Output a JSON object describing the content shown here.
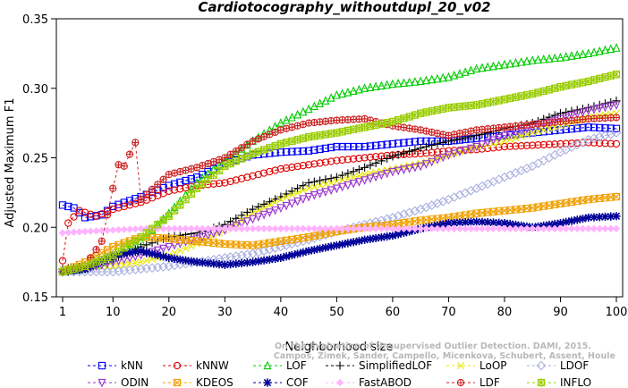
{
  "chart_data": {
    "type": "line",
    "title": "Cardiotocography_withoutdupl_20_v02",
    "xlabel": "Neighborhood size",
    "ylabel": "Adjusted Maximum F1",
    "xlim": [
      1,
      100
    ],
    "ylim": [
      0.15,
      0.35
    ],
    "xticks": [
      1,
      10,
      20,
      30,
      40,
      50,
      60,
      70,
      80,
      90,
      100
    ],
    "yticks": [
      0.15,
      0.2,
      0.25,
      0.3,
      0.35
    ],
    "grid": false,
    "legend_position": "bottom",
    "watermark": [
      "Campos, Zimek, Sander, Campello, Micenkova, Schubert, Assent, Houle",
      "On the Evaluation of Unsupervised Outlier Detection. DAMI, 2015."
    ],
    "series": [
      {
        "name": "kNN",
        "color": "#0000ff",
        "marker": "square",
        "dash": "3,3",
        "points": [
          [
            1,
            0.216
          ],
          [
            3,
            0.214
          ],
          [
            5,
            0.207
          ],
          [
            8,
            0.209
          ],
          [
            10,
            0.215
          ],
          [
            15,
            0.222
          ],
          [
            20,
            0.23
          ],
          [
            25,
            0.236
          ],
          [
            30,
            0.246
          ],
          [
            35,
            0.252
          ],
          [
            40,
            0.254
          ],
          [
            45,
            0.255
          ],
          [
            50,
            0.258
          ],
          [
            55,
            0.258
          ],
          [
            60,
            0.26
          ],
          [
            65,
            0.262
          ],
          [
            70,
            0.262
          ],
          [
            75,
            0.264
          ],
          [
            80,
            0.266
          ],
          [
            85,
            0.268
          ],
          [
            90,
            0.27
          ],
          [
            95,
            0.272
          ],
          [
            100,
            0.271
          ]
        ]
      },
      {
        "name": "kNNW",
        "color": "#e00000",
        "marker": "circle",
        "dash": "3,3",
        "points": [
          [
            1,
            0.176
          ],
          [
            2,
            0.203
          ],
          [
            4,
            0.212
          ],
          [
            7,
            0.208
          ],
          [
            10,
            0.213
          ],
          [
            15,
            0.218
          ],
          [
            20,
            0.226
          ],
          [
            25,
            0.23
          ],
          [
            30,
            0.232
          ],
          [
            35,
            0.237
          ],
          [
            40,
            0.242
          ],
          [
            45,
            0.245
          ],
          [
            50,
            0.248
          ],
          [
            55,
            0.25
          ],
          [
            60,
            0.252
          ],
          [
            65,
            0.253
          ],
          [
            70,
            0.255
          ],
          [
            75,
            0.256
          ],
          [
            80,
            0.258
          ],
          [
            85,
            0.259
          ],
          [
            90,
            0.26
          ],
          [
            95,
            0.261
          ],
          [
            100,
            0.26
          ]
        ]
      },
      {
        "name": "LOF",
        "color": "#00cc00",
        "marker": "triangle-up",
        "dash": "3,3",
        "points": [
          [
            1,
            0.168
          ],
          [
            5,
            0.17
          ],
          [
            10,
            0.178
          ],
          [
            15,
            0.19
          ],
          [
            20,
            0.21
          ],
          [
            25,
            0.232
          ],
          [
            30,
            0.248
          ],
          [
            35,
            0.262
          ],
          [
            40,
            0.275
          ],
          [
            45,
            0.285
          ],
          [
            50,
            0.295
          ],
          [
            55,
            0.3
          ],
          [
            60,
            0.303
          ],
          [
            65,
            0.305
          ],
          [
            70,
            0.308
          ],
          [
            75,
            0.314
          ],
          [
            80,
            0.317
          ],
          [
            85,
            0.32
          ],
          [
            90,
            0.322
          ],
          [
            95,
            0.325
          ],
          [
            100,
            0.329
          ]
        ]
      },
      {
        "name": "SimplifiedLOF",
        "color": "#000000",
        "marker": "plus",
        "dash": "3,3",
        "points": [
          [
            1,
            0.17
          ],
          [
            5,
            0.172
          ],
          [
            10,
            0.177
          ],
          [
            15,
            0.186
          ],
          [
            20,
            0.193
          ],
          [
            25,
            0.196
          ],
          [
            30,
            0.202
          ],
          [
            35,
            0.213
          ],
          [
            40,
            0.222
          ],
          [
            45,
            0.232
          ],
          [
            50,
            0.236
          ],
          [
            55,
            0.243
          ],
          [
            60,
            0.251
          ],
          [
            65,
            0.257
          ],
          [
            70,
            0.262
          ],
          [
            75,
            0.266
          ],
          [
            80,
            0.271
          ],
          [
            85,
            0.275
          ],
          [
            90,
            0.282
          ],
          [
            95,
            0.286
          ],
          [
            100,
            0.291
          ]
        ]
      },
      {
        "name": "LoOP",
        "color": "#e6e600",
        "marker": "cross",
        "dash": "3,3",
        "points": [
          [
            1,
            0.17
          ],
          [
            5,
            0.171
          ],
          [
            10,
            0.172
          ],
          [
            15,
            0.175
          ],
          [
            20,
            0.18
          ],
          [
            25,
            0.188
          ],
          [
            30,
            0.198
          ],
          [
            35,
            0.21
          ],
          [
            40,
            0.22
          ],
          [
            45,
            0.228
          ],
          [
            50,
            0.233
          ],
          [
            55,
            0.238
          ],
          [
            60,
            0.242
          ],
          [
            65,
            0.246
          ],
          [
            70,
            0.252
          ],
          [
            75,
            0.258
          ],
          [
            80,
            0.262
          ],
          [
            85,
            0.268
          ],
          [
            90,
            0.273
          ],
          [
            95,
            0.279
          ],
          [
            100,
            0.282
          ]
        ]
      },
      {
        "name": "LDOF",
        "color": "#aab0e0",
        "marker": "diamond",
        "dash": "3,3",
        "points": [
          [
            1,
            0.168
          ],
          [
            5,
            0.168
          ],
          [
            10,
            0.168
          ],
          [
            15,
            0.17
          ],
          [
            20,
            0.172
          ],
          [
            25,
            0.175
          ],
          [
            30,
            0.178
          ],
          [
            35,
            0.181
          ],
          [
            40,
            0.186
          ],
          [
            45,
            0.191
          ],
          [
            50,
            0.197
          ],
          [
            55,
            0.202
          ],
          [
            60,
            0.207
          ],
          [
            65,
            0.213
          ],
          [
            70,
            0.22
          ],
          [
            75,
            0.228
          ],
          [
            80,
            0.236
          ],
          [
            85,
            0.244
          ],
          [
            90,
            0.254
          ],
          [
            95,
            0.263
          ],
          [
            100,
            0.268
          ]
        ]
      },
      {
        "name": "ODIN",
        "color": "#9933cc",
        "marker": "triangle-down",
        "dash": "3,3",
        "points": [
          [
            1,
            0.168
          ],
          [
            5,
            0.17
          ],
          [
            10,
            0.175
          ],
          [
            15,
            0.18
          ],
          [
            20,
            0.186
          ],
          [
            25,
            0.192
          ],
          [
            30,
            0.198
          ],
          [
            35,
            0.206
          ],
          [
            40,
            0.214
          ],
          [
            45,
            0.222
          ],
          [
            50,
            0.228
          ],
          [
            55,
            0.234
          ],
          [
            60,
            0.24
          ],
          [
            65,
            0.244
          ],
          [
            70,
            0.252
          ],
          [
            75,
            0.258
          ],
          [
            80,
            0.266
          ],
          [
            85,
            0.272
          ],
          [
            90,
            0.278
          ],
          [
            95,
            0.284
          ],
          [
            100,
            0.288
          ]
        ]
      },
      {
        "name": "KDEOS",
        "color": "#f0a000",
        "marker": "square-x",
        "dash": "3,3",
        "points": [
          [
            1,
            0.168
          ],
          [
            5,
            0.175
          ],
          [
            10,
            0.186
          ],
          [
            15,
            0.193
          ],
          [
            20,
            0.192
          ],
          [
            25,
            0.19
          ],
          [
            30,
            0.188
          ],
          [
            35,
            0.187
          ],
          [
            40,
            0.19
          ],
          [
            45,
            0.193
          ],
          [
            50,
            0.197
          ],
          [
            55,
            0.2
          ],
          [
            60,
            0.202
          ],
          [
            65,
            0.205
          ],
          [
            70,
            0.207
          ],
          [
            75,
            0.21
          ],
          [
            80,
            0.212
          ],
          [
            85,
            0.214
          ],
          [
            90,
            0.217
          ],
          [
            95,
            0.22
          ],
          [
            100,
            0.222
          ]
        ]
      },
      {
        "name": "COF",
        "color": "#000099",
        "marker": "asterisk",
        "dash": "3,3",
        "points": [
          [
            1,
            0.168
          ],
          [
            5,
            0.17
          ],
          [
            10,
            0.18
          ],
          [
            15,
            0.183
          ],
          [
            20,
            0.178
          ],
          [
            25,
            0.175
          ],
          [
            30,
            0.173
          ],
          [
            35,
            0.175
          ],
          [
            40,
            0.178
          ],
          [
            45,
            0.183
          ],
          [
            50,
            0.187
          ],
          [
            55,
            0.191
          ],
          [
            60,
            0.194
          ],
          [
            65,
            0.199
          ],
          [
            70,
            0.203
          ],
          [
            75,
            0.204
          ],
          [
            80,
            0.203
          ],
          [
            85,
            0.2
          ],
          [
            90,
            0.203
          ],
          [
            95,
            0.207
          ],
          [
            100,
            0.208
          ]
        ]
      },
      {
        "name": "FastABOD",
        "color": "#ffb3ff",
        "marker": "diamond-filled",
        "dash": "3,3",
        "points": [
          [
            1,
            0.196
          ],
          [
            5,
            0.197
          ],
          [
            10,
            0.198
          ],
          [
            15,
            0.199
          ],
          [
            20,
            0.199
          ],
          [
            30,
            0.199
          ],
          [
            40,
            0.199
          ],
          [
            50,
            0.199
          ],
          [
            60,
            0.199
          ],
          [
            70,
            0.199
          ],
          [
            80,
            0.199
          ],
          [
            90,
            0.199
          ],
          [
            100,
            0.199
          ]
        ]
      },
      {
        "name": "LDF",
        "color": "#cc2222",
        "marker": "circle-plus",
        "dash": "3,3",
        "points": [
          [
            1,
            0.168
          ],
          [
            5,
            0.172
          ],
          [
            8,
            0.19
          ],
          [
            10,
            0.228
          ],
          [
            11,
            0.245
          ],
          [
            12,
            0.244
          ],
          [
            14,
            0.261
          ],
          [
            15,
            0.22
          ],
          [
            20,
            0.238
          ],
          [
            25,
            0.243
          ],
          [
            30,
            0.25
          ],
          [
            35,
            0.262
          ],
          [
            40,
            0.27
          ],
          [
            45,
            0.275
          ],
          [
            50,
            0.277
          ],
          [
            55,
            0.278
          ],
          [
            60,
            0.273
          ],
          [
            65,
            0.27
          ],
          [
            70,
            0.266
          ],
          [
            75,
            0.27
          ],
          [
            80,
            0.272
          ],
          [
            85,
            0.274
          ],
          [
            90,
            0.276
          ],
          [
            95,
            0.278
          ],
          [
            100,
            0.279
          ]
        ]
      },
      {
        "name": "INFLO",
        "color": "#99cc00",
        "marker": "star",
        "dash": "3,3",
        "points": [
          [
            1,
            0.168
          ],
          [
            5,
            0.172
          ],
          [
            10,
            0.18
          ],
          [
            15,
            0.193
          ],
          [
            20,
            0.208
          ],
          [
            25,
            0.228
          ],
          [
            30,
            0.244
          ],
          [
            35,
            0.253
          ],
          [
            40,
            0.26
          ],
          [
            45,
            0.265
          ],
          [
            50,
            0.268
          ],
          [
            55,
            0.272
          ],
          [
            60,
            0.276
          ],
          [
            65,
            0.282
          ],
          [
            70,
            0.286
          ],
          [
            75,
            0.288
          ],
          [
            80,
            0.292
          ],
          [
            85,
            0.296
          ],
          [
            90,
            0.301
          ],
          [
            95,
            0.305
          ],
          [
            100,
            0.31
          ]
        ]
      }
    ]
  }
}
